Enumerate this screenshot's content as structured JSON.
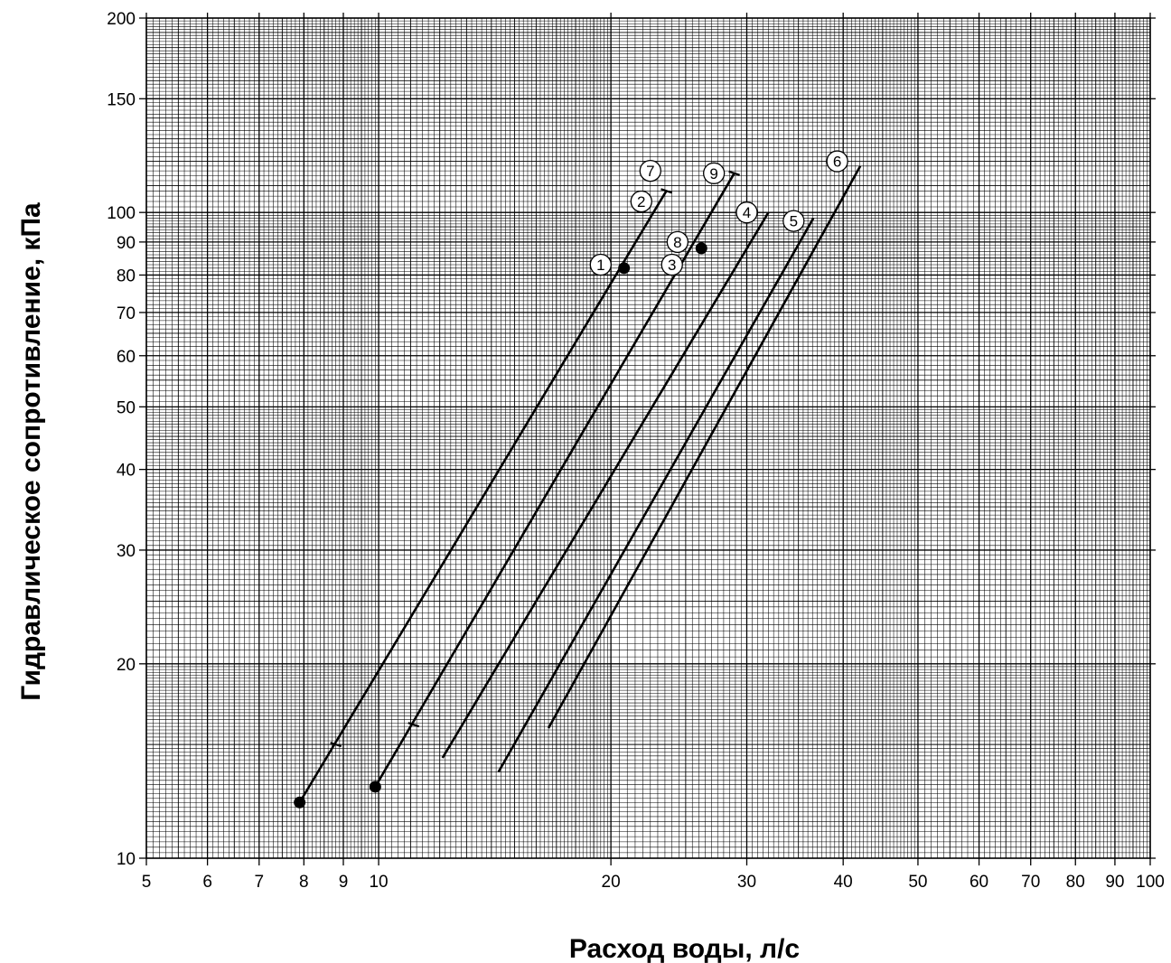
{
  "chart_data": {
    "type": "line",
    "x_scale": "log",
    "y_scale": "log",
    "xlim": [
      5,
      100
    ],
    "ylim": [
      10,
      200
    ],
    "xlabel": "Расход воды, л/с",
    "ylabel": "Гидравлическое сопротивление, кПа",
    "grid": true,
    "x_tick_labels": [
      "5",
      "6",
      "7",
      "8",
      "9",
      "10",
      "20",
      "30",
      "40",
      "50",
      "60",
      "70",
      "80",
      "90",
      "100"
    ],
    "x_tick_values": [
      5,
      6,
      7,
      8,
      9,
      10,
      20,
      30,
      40,
      50,
      60,
      70,
      80,
      90,
      100
    ],
    "y_tick_labels": [
      "10",
      "20",
      "30",
      "40",
      "50",
      "60",
      "70",
      "80",
      "90",
      "100",
      "150",
      "200"
    ],
    "y_tick_values": [
      10,
      20,
      30,
      40,
      50,
      60,
      70,
      80,
      90,
      100,
      150,
      200
    ],
    "lines": [
      {
        "id": "A",
        "x": [
          7.9,
          23.6
        ],
        "y": [
          12.2,
          108
        ]
      },
      {
        "id": "B",
        "x": [
          9.9,
          28.9
        ],
        "y": [
          12.9,
          115
        ]
      },
      {
        "id": "C",
        "x": [
          12.1,
          32.0
        ],
        "y": [
          14.3,
          100
        ]
      },
      {
        "id": "D",
        "x": [
          14.3,
          36.6
        ],
        "y": [
          13.6,
          98
        ]
      },
      {
        "id": "E",
        "x": [
          16.6,
          42.1
        ],
        "y": [
          15.9,
          118
        ]
      }
    ],
    "points": [
      {
        "x": 7.9,
        "y": 12.2
      },
      {
        "x": 9.9,
        "y": 12.9
      },
      {
        "x": 20.8,
        "y": 82
      },
      {
        "x": 26.2,
        "y": 88
      }
    ],
    "tick_marks": [
      {
        "x": 8.8,
        "y": 15.0
      },
      {
        "x": 11.1,
        "y": 16.1
      },
      {
        "x": 23.6,
        "y": 108
      },
      {
        "x": 28.9,
        "y": 115
      }
    ],
    "annotations": [
      {
        "text": "1",
        "x": 19.4,
        "y": 83
      },
      {
        "text": "2",
        "x": 21.9,
        "y": 104
      },
      {
        "text": "3",
        "x": 24.0,
        "y": 83
      },
      {
        "text": "4",
        "x": 30.0,
        "y": 100
      },
      {
        "text": "5",
        "x": 34.5,
        "y": 97
      },
      {
        "text": "6",
        "x": 39.3,
        "y": 120
      },
      {
        "text": "7",
        "x": 22.5,
        "y": 116
      },
      {
        "text": "8",
        "x": 24.4,
        "y": 90
      },
      {
        "text": "9",
        "x": 27.2,
        "y": 115
      }
    ]
  }
}
